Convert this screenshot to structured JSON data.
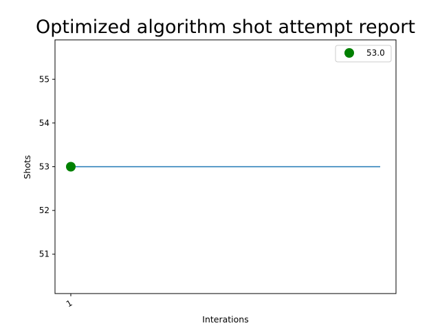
{
  "chart_data": {
    "type": "line",
    "title": "Optimized algorithm shot attempt report",
    "xlabel": "Interations",
    "ylabel": "Shots",
    "x_ticks": [
      "1"
    ],
    "y_ticks": [
      51,
      52,
      53,
      54,
      55
    ],
    "ylim": [
      50.1,
      55.9
    ],
    "grid": false,
    "line": {
      "x": [
        1,
        2
      ],
      "y": [
        53,
        53
      ],
      "color": "#1f77b4"
    },
    "highlight": {
      "x": 1,
      "y": 53,
      "label": "53.0",
      "color": "#008000"
    },
    "legend": {
      "placement": "top-right",
      "entries": [
        "53.0"
      ]
    }
  }
}
